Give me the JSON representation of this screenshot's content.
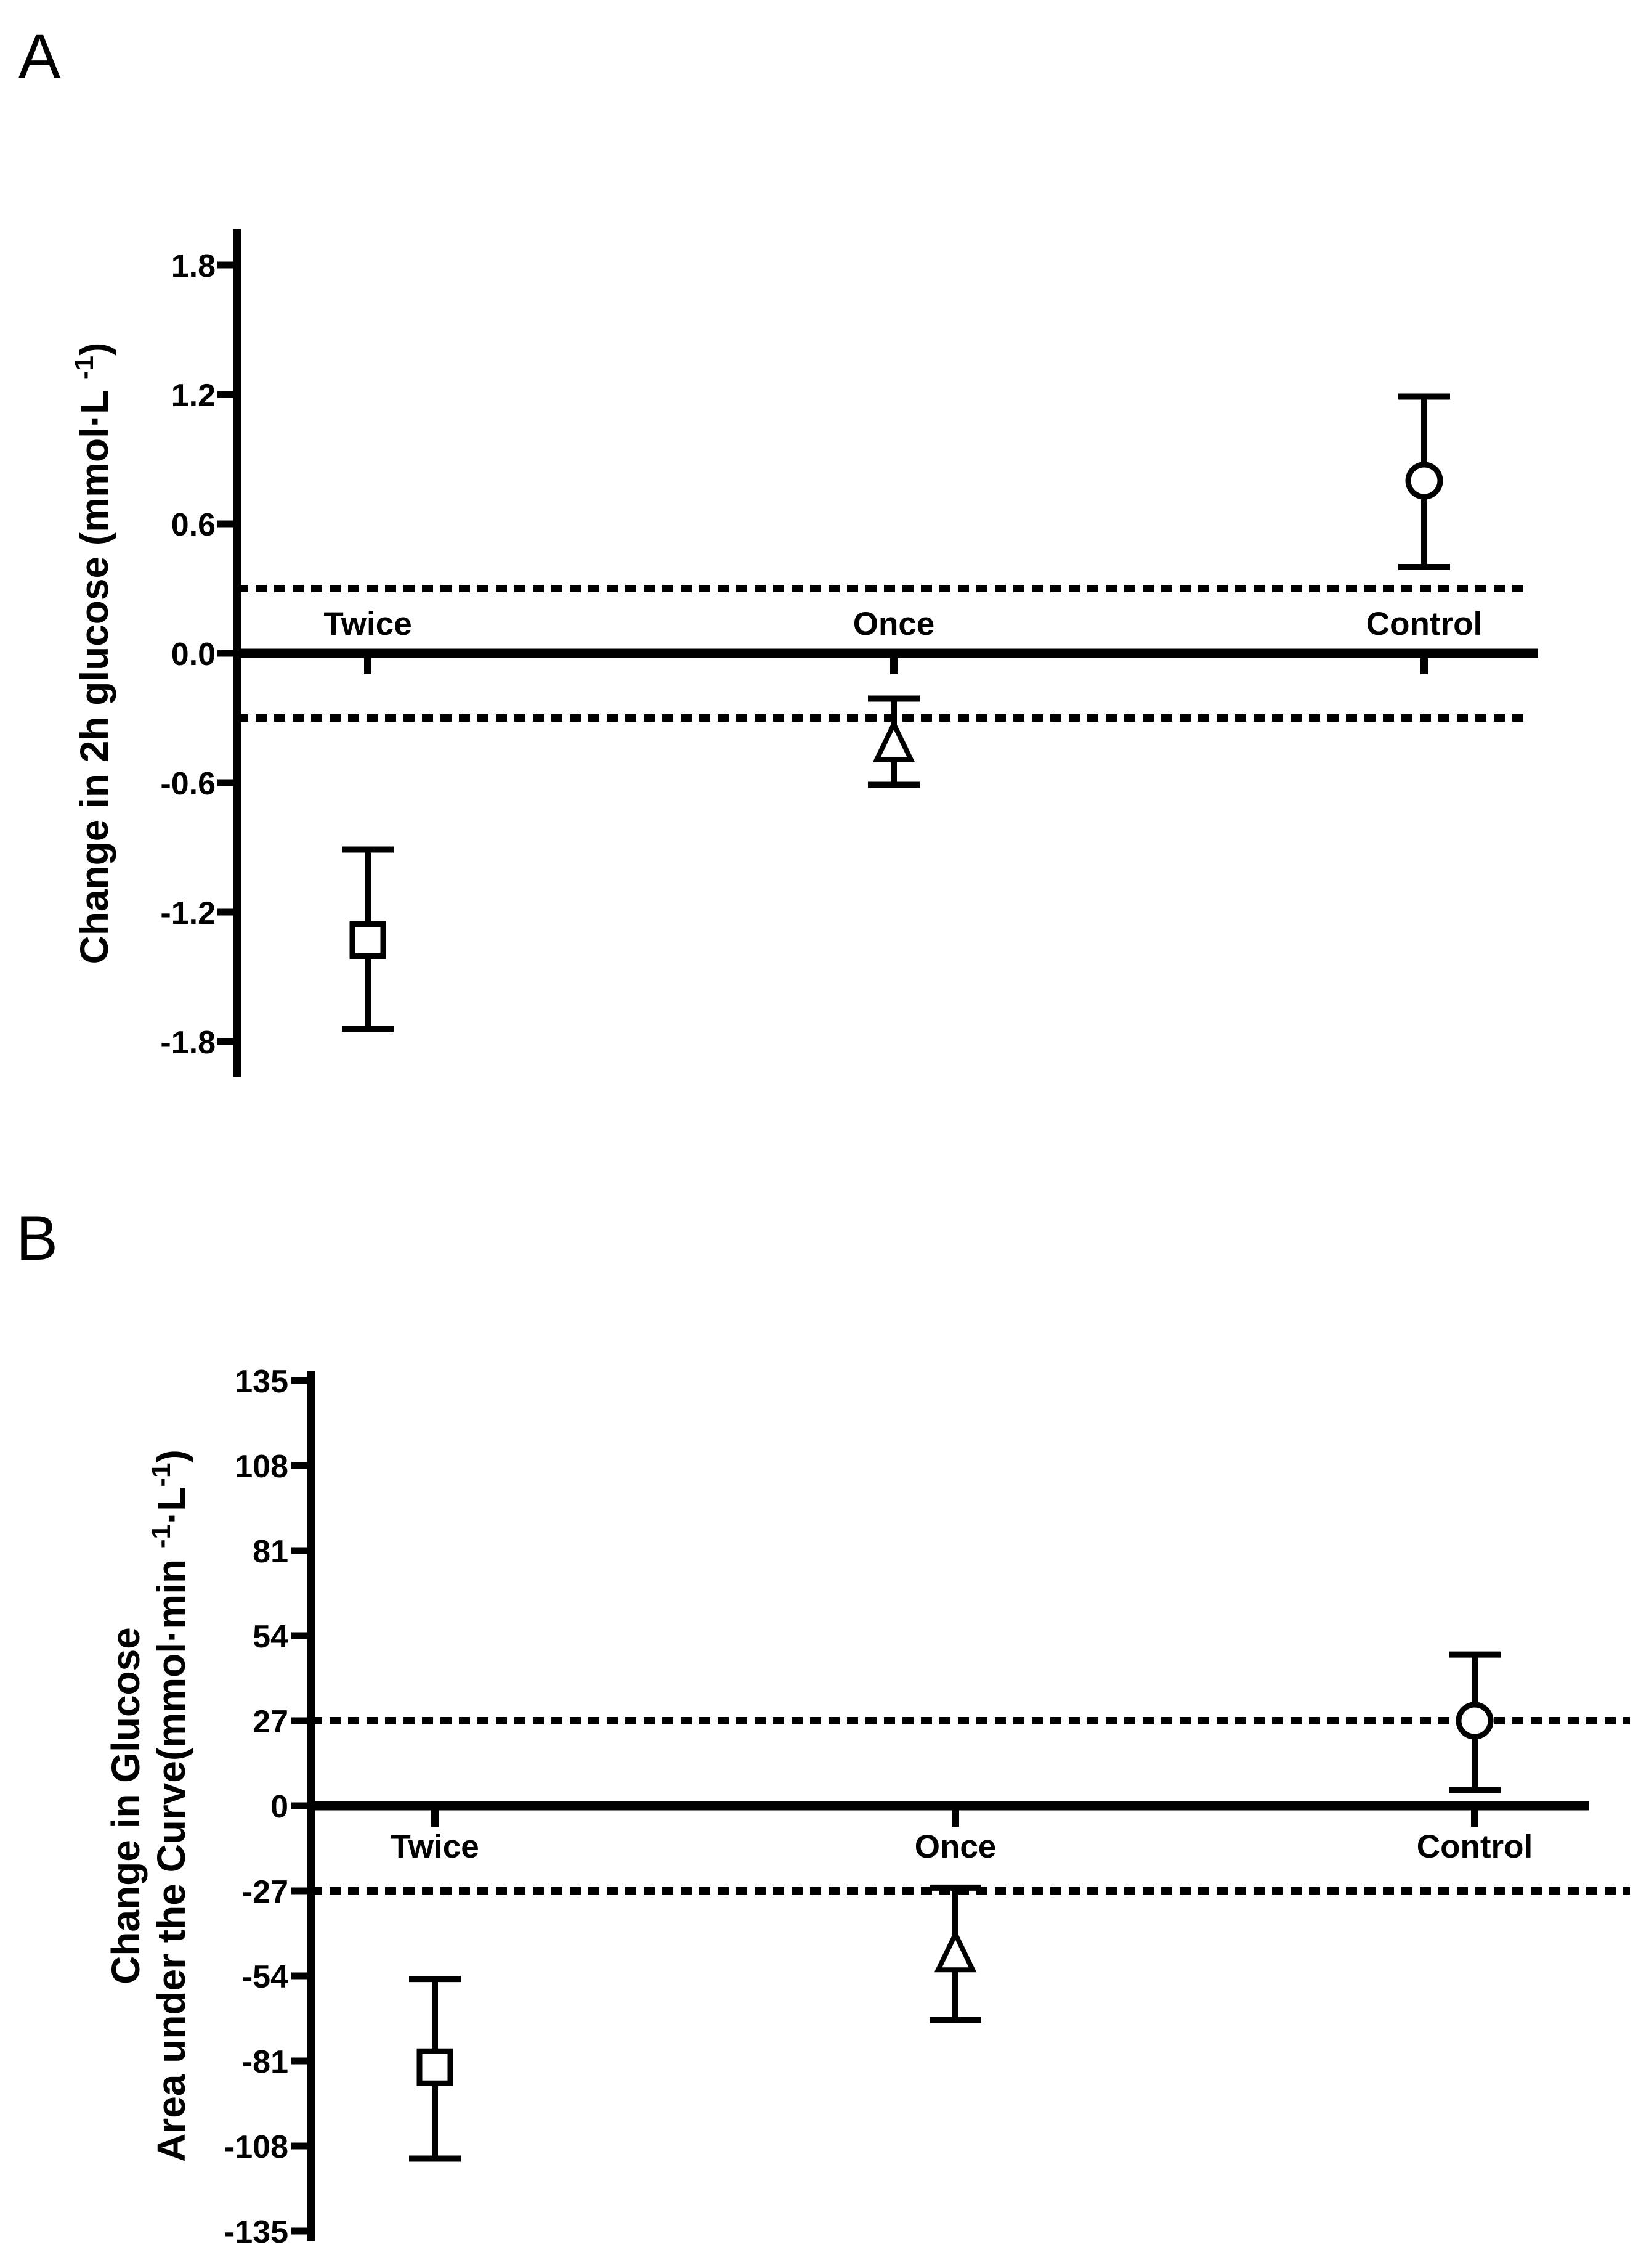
{
  "figure": {
    "background": "#ffffff",
    "ink": "#000000",
    "marker_fill": "#ffffff"
  },
  "chart_data": [
    {
      "type": "scatter",
      "panel_label": "A",
      "title": "",
      "xlabel": "",
      "ylabel": "Change in 2h glucose (mmol·L⁻¹)",
      "ylabel_segments": [
        [
          {
            "t": "Change in 2h glucose (mmol·L "
          },
          {
            "t": "-1",
            "sup": true
          },
          {
            "t": ")"
          }
        ]
      ],
      "categories": [
        "Twice",
        "Once",
        "Control"
      ],
      "yticks": [
        1.8,
        1.2,
        0.6,
        0.0,
        -0.6,
        -1.2,
        -1.8
      ],
      "ytick_labels": [
        "1.8",
        "1.2",
        "0.6",
        "0.0",
        "-0.6",
        "-1.2",
        "-1.8"
      ],
      "ylim": [
        -2.0,
        2.0
      ],
      "zero_line": 0.0,
      "equivalence_bounds": [
        0.3,
        -0.3
      ],
      "category_labels_position": "above-axis",
      "grid": false,
      "legend": "none",
      "series": [
        {
          "category": "Twice",
          "marker": "square",
          "mean": -1.33,
          "ci_low": -1.74,
          "ci_high": -0.91
        },
        {
          "category": "Once",
          "marker": "triangle",
          "mean": -0.42,
          "ci_low": -0.61,
          "ci_high": -0.21
        },
        {
          "category": "Control",
          "marker": "circle",
          "mean": 0.8,
          "ci_low": 0.4,
          "ci_high": 1.19
        }
      ]
    },
    {
      "type": "scatter",
      "panel_label": "B",
      "title": "",
      "xlabel": "",
      "ylabel": "Change in Glucose Area under the Curve(mmol·min⁻¹·L⁻¹)",
      "ylabel_segments": [
        [
          {
            "t": "Change in Glucose"
          }
        ],
        [
          {
            "t": "Area under the Curve(mmol·min "
          },
          {
            "t": "-1",
            "sup": true
          },
          {
            "t": "·L"
          },
          {
            "t": "-1",
            "sup": true
          },
          {
            "t": ")"
          }
        ]
      ],
      "categories": [
        "Twice",
        "Once",
        "Control"
      ],
      "yticks": [
        135,
        108,
        81,
        54,
        27,
        0,
        -27,
        -54,
        -81,
        -108,
        -135
      ],
      "ytick_labels": [
        "135",
        "108",
        "81",
        "54",
        "27",
        "0",
        "-27",
        "-54",
        "-81",
        "-108",
        "-135"
      ],
      "ylim": [
        -140,
        140
      ],
      "zero_line": 0,
      "equivalence_bounds": [
        27,
        -27
      ],
      "category_labels_position": "below-axis",
      "grid": false,
      "legend": "none",
      "series": [
        {
          "category": "Twice",
          "marker": "square",
          "mean": -83,
          "ci_low": -112,
          "ci_high": -55
        },
        {
          "category": "Once",
          "marker": "triangle",
          "mean": -47,
          "ci_low": -68,
          "ci_high": -26
        },
        {
          "category": "Control",
          "marker": "circle",
          "mean": 27,
          "ci_low": 5,
          "ci_high": 48
        }
      ]
    }
  ]
}
